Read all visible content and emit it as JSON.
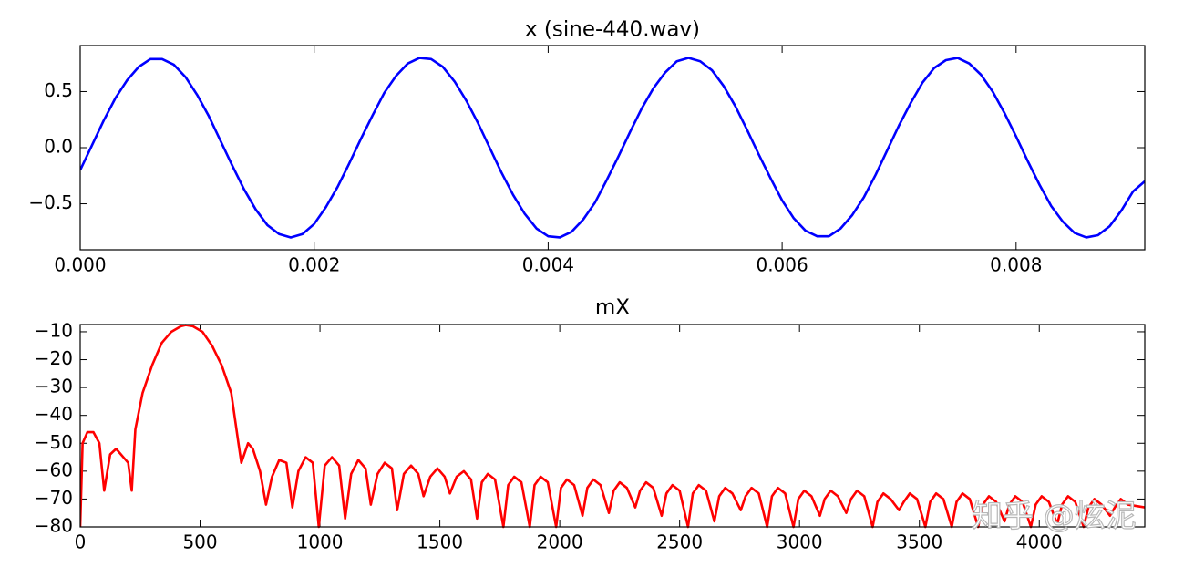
{
  "chart_data": [
    {
      "type": "line",
      "title": "x (sine-440.wav)",
      "color": "#0000ff",
      "x": [
        0,
        0.0001,
        0.0002,
        0.0003,
        0.0004,
        0.0005,
        0.0006,
        0.0007,
        0.0008,
        0.0009,
        0.001,
        0.0011,
        0.0012,
        0.0013,
        0.0014,
        0.0015,
        0.0016,
        0.0017,
        0.0018,
        0.0019,
        0.002,
        0.0021,
        0.0022,
        0.0023,
        0.0024,
        0.0025,
        0.0026,
        0.0027,
        0.0028,
        0.0029,
        0.003,
        0.0031,
        0.0032,
        0.0033,
        0.0034,
        0.0035,
        0.0036,
        0.0037,
        0.0038,
        0.0039,
        0.004,
        0.0041,
        0.0042,
        0.0043,
        0.0044,
        0.0045,
        0.0046,
        0.0047,
        0.0048,
        0.0049,
        0.005,
        0.0051,
        0.0052,
        0.0053,
        0.0054,
        0.0055,
        0.0056,
        0.0057,
        0.0058,
        0.0059,
        0.006,
        0.0061,
        0.0062,
        0.0063,
        0.0064,
        0.0065,
        0.0066,
        0.0067,
        0.0068,
        0.0069,
        0.007,
        0.0071,
        0.0072,
        0.0073,
        0.0074,
        0.0075,
        0.0076,
        0.0077,
        0.0078,
        0.0079,
        0.008,
        0.0081,
        0.0082,
        0.0083,
        0.0084,
        0.0085,
        0.0086,
        0.0087,
        0.0088,
        0.0089,
        0.009,
        0.0091
      ],
      "values": [
        -0.2,
        0.02,
        0.24,
        0.44,
        0.6,
        0.72,
        0.79,
        0.79,
        0.74,
        0.63,
        0.47,
        0.28,
        0.06,
        -0.16,
        -0.37,
        -0.55,
        -0.69,
        -0.77,
        -0.8,
        -0.77,
        -0.68,
        -0.53,
        -0.35,
        -0.14,
        0.08,
        0.29,
        0.49,
        0.64,
        0.75,
        0.8,
        0.79,
        0.72,
        0.59,
        0.42,
        0.22,
        0,
        -0.22,
        -0.42,
        -0.59,
        -0.72,
        -0.79,
        -0.8,
        -0.75,
        -0.64,
        -0.49,
        -0.29,
        -0.08,
        0.14,
        0.35,
        0.53,
        0.67,
        0.77,
        0.8,
        0.77,
        0.69,
        0.55,
        0.37,
        0.16,
        -0.06,
        -0.27,
        -0.47,
        -0.63,
        -0.74,
        -0.79,
        -0.79,
        -0.72,
        -0.6,
        -0.44,
        -0.24,
        -0.02,
        0.2,
        0.4,
        0.58,
        0.71,
        0.78,
        0.8,
        0.75,
        0.65,
        0.5,
        0.31,
        0.1,
        -0.12,
        -0.33,
        -0.52,
        -0.66,
        -0.76,
        -0.8,
        -0.78,
        -0.7,
        -0.56,
        -0.39,
        -0.3
      ],
      "xlim": [
        0,
        0.0091
      ],
      "xticks": [
        {
          "value": 0,
          "label": "0.000"
        },
        {
          "value": 0.002,
          "label": "0.002"
        },
        {
          "value": 0.004,
          "label": "0.004"
        },
        {
          "value": 0.006,
          "label": "0.006"
        },
        {
          "value": 0.008,
          "label": "0.008"
        }
      ],
      "ylim": [
        -0.91,
        0.91
      ],
      "yticks": [
        {
          "value": -0.5,
          "label": "−0.5"
        },
        {
          "value": 0,
          "label": "0.0"
        },
        {
          "value": 0.5,
          "label": "0.5"
        }
      ]
    },
    {
      "type": "line",
      "title": "mX",
      "color": "#ff0000",
      "x": [
        0,
        10,
        30,
        55,
        80,
        100,
        125,
        150,
        180,
        200,
        215,
        230,
        260,
        300,
        340,
        380,
        420,
        440,
        470,
        510,
        550,
        590,
        630,
        660,
        672,
        700,
        720,
        750,
        775,
        800,
        830,
        860,
        885,
        910,
        940,
        970,
        995,
        1020,
        1050,
        1080,
        1105,
        1130,
        1160,
        1190,
        1212,
        1240,
        1270,
        1300,
        1322,
        1350,
        1380,
        1410,
        1432,
        1460,
        1490,
        1520,
        1542,
        1570,
        1600,
        1630,
        1655,
        1675,
        1700,
        1730,
        1765,
        1785,
        1810,
        1840,
        1875,
        1895,
        1920,
        1950,
        1985,
        2005,
        2030,
        2060,
        2095,
        2115,
        2140,
        2170,
        2205,
        2225,
        2250,
        2280,
        2315,
        2335,
        2360,
        2390,
        2425,
        2445,
        2470,
        2500,
        2535,
        2555,
        2580,
        2610,
        2645,
        2665,
        2690,
        2720,
        2755,
        2775,
        2800,
        2830,
        2865,
        2885,
        2910,
        2940,
        2975,
        2995,
        3020,
        3050,
        3085,
        3105,
        3130,
        3160,
        3195,
        3215,
        3240,
        3270,
        3305,
        3325,
        3350,
        3380,
        3415,
        3435,
        3460,
        3490,
        3525,
        3545,
        3570,
        3600,
        3635,
        3655,
        3680,
        3710,
        3745,
        3765,
        3790,
        3820,
        3855,
        3875,
        3900,
        3930,
        3965,
        3985,
        4010,
        4040,
        4075,
        4095,
        4120,
        4150,
        4185,
        4205,
        4230,
        4260,
        4295,
        4315,
        4340,
        4370,
        4440
      ],
      "values": [
        -80,
        -50,
        -46,
        -46,
        -50,
        -67,
        -54,
        -52,
        -55,
        -57,
        -67,
        -45,
        -32,
        -22,
        -14,
        -10,
        -8,
        -7.6,
        -8,
        -10,
        -15,
        -22,
        -32,
        -50,
        -57,
        -50,
        -52,
        -60,
        -72,
        -62,
        -56,
        -57,
        -73,
        -60,
        -55,
        -57,
        -80,
        -58,
        -55,
        -58,
        -77,
        -61,
        -56,
        -59,
        -72,
        -61,
        -57,
        -59,
        -74,
        -61,
        -58,
        -61,
        -69,
        -62,
        -59,
        -62,
        -68,
        -62,
        -60,
        -63,
        -77,
        -64,
        -61,
        -63,
        -80,
        -65,
        -62,
        -64,
        -80,
        -65,
        -62,
        -64,
        -80,
        -66,
        -63,
        -65,
        -76,
        -66,
        -63,
        -65,
        -75,
        -67,
        -64,
        -66,
        -73,
        -67,
        -64,
        -66,
        -76,
        -68,
        -65,
        -67,
        -80,
        -68,
        -65,
        -67,
        -78,
        -69,
        -66,
        -68,
        -74,
        -69,
        -66,
        -68,
        -80,
        -69,
        -66,
        -68,
        -80,
        -70,
        -67,
        -69,
        -76,
        -70,
        -67,
        -69,
        -75,
        -70,
        -67,
        -69,
        -80,
        -71,
        -68,
        -70,
        -74,
        -71,
        -68,
        -70,
        -80,
        -71,
        -68,
        -70,
        -80,
        -71,
        -68,
        -70,
        -80,
        -72,
        -69,
        -71,
        -78,
        -72,
        -69,
        -71,
        -80,
        -72,
        -69,
        -71,
        -79,
        -72,
        -69,
        -71,
        -80,
        -73,
        -70,
        -72,
        -76,
        -73,
        -70,
        -72,
        -73
      ],
      "xlim": [
        0,
        4440
      ],
      "xticks": [
        0,
        500,
        1000,
        1500,
        2000,
        2500,
        3000,
        3500,
        4000
      ],
      "ylim": [
        -80,
        -7.4
      ],
      "yticks": [
        {
          "value": -80,
          "label": "−80"
        },
        {
          "value": -70,
          "label": "−70"
        },
        {
          "value": -60,
          "label": "−60"
        },
        {
          "value": -50,
          "label": "−50"
        },
        {
          "value": -40,
          "label": "−40"
        },
        {
          "value": -30,
          "label": "−30"
        },
        {
          "value": -20,
          "label": "−20"
        },
        {
          "value": -10,
          "label": "−10"
        }
      ]
    }
  ],
  "watermark": "知乎 @炫泥"
}
